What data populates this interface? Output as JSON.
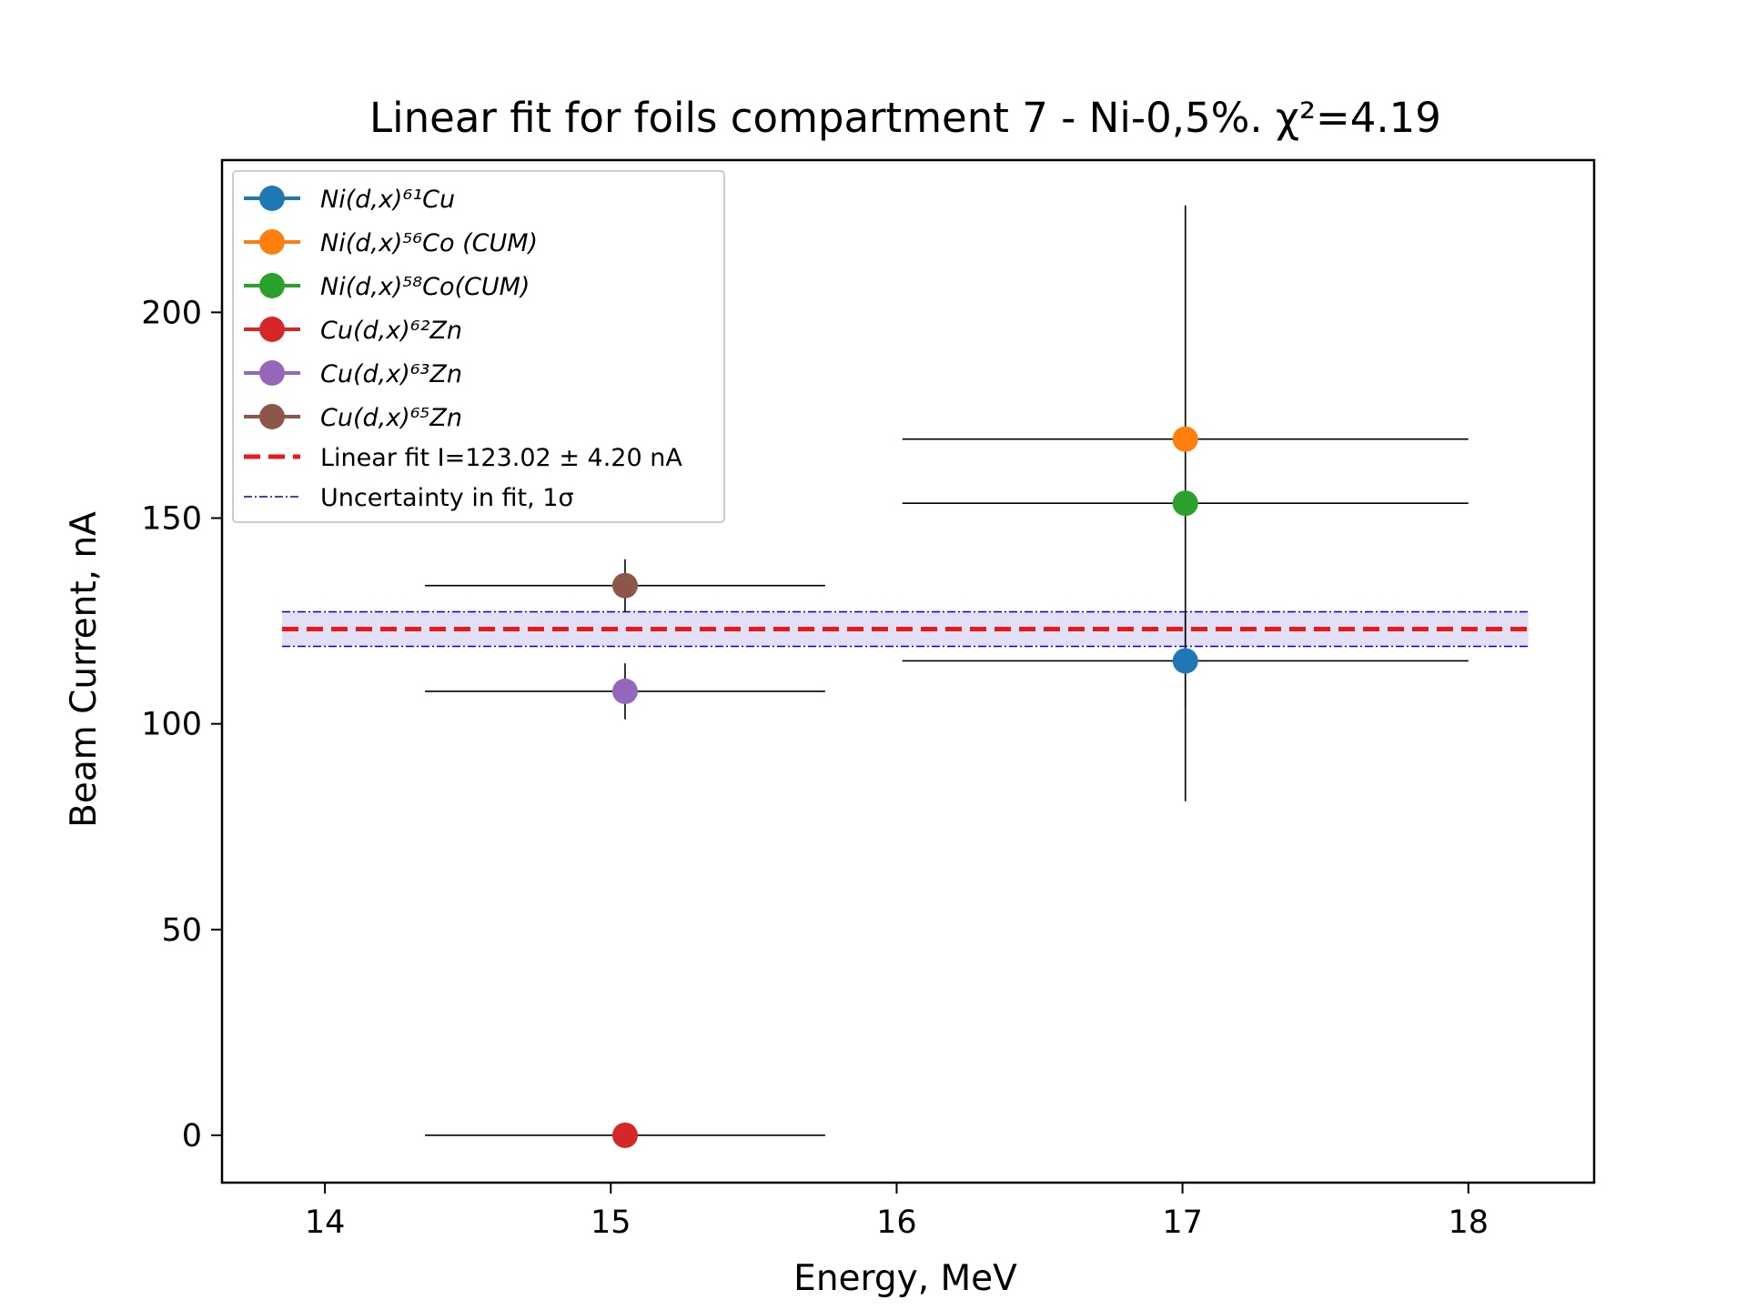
{
  "chart_data": {
    "type": "scatter",
    "title": "Linear fit for foils compartment 7 - Ni-0,5%. χ²=4.19",
    "xlabel": "Energy, MeV",
    "ylabel": "Beam Current, nA",
    "xlim": [
      13.64,
      18.44
    ],
    "ylim": [
      -11.5,
      237
    ],
    "x_ticks": [
      14,
      15,
      16,
      17,
      18
    ],
    "y_ticks": [
      0,
      50,
      100,
      150,
      200
    ],
    "grid": false,
    "legend_position": "upper-left",
    "series": [
      {
        "name": "Ni(d,x)⁶¹Cu",
        "color": "#1f77b4",
        "points": [
          {
            "x": 17.01,
            "y": 115.3,
            "xerr": 0.99,
            "yerr": 11.5
          }
        ]
      },
      {
        "name": "Ni(d,x)⁵⁶Co (CUM)",
        "color": "#ff7f0e",
        "points": [
          {
            "x": 17.01,
            "y": 169.2,
            "xerr": 0.99,
            "yerr": 0
          }
        ]
      },
      {
        "name": "Ni(d,x)⁵⁸Co(CUM)",
        "color": "#2ca02c",
        "points": [
          {
            "x": 17.01,
            "y": 153.6,
            "xerr": 0.99,
            "yerr": 72.4
          }
        ]
      },
      {
        "name": "Cu(d,x)⁶²Zn",
        "color": "#d62728",
        "points": [
          {
            "x": 15.05,
            "y": 0,
            "xerr": 0.7,
            "yerr": 0
          }
        ]
      },
      {
        "name": "Cu(d,x)⁶³Zn",
        "color": "#9467bd",
        "points": [
          {
            "x": 15.05,
            "y": 107.9,
            "xerr": 0.7,
            "yerr": 6.8
          }
        ]
      },
      {
        "name": "Cu(d,x)⁶⁵Zn",
        "color": "#8c564b",
        "points": [
          {
            "x": 15.05,
            "y": 133.6,
            "xerr": 0.7,
            "yerr": 6.4
          }
        ]
      }
    ],
    "fit": {
      "name": "Linear fit I=123.02 ± 4.20 nA",
      "value": 123.02,
      "uncertainty": 4.2,
      "x_range": [
        13.85,
        18.21
      ],
      "color": "#e41a1c"
    },
    "uncertainty_band": {
      "name": "Uncertainty in fit, 1σ",
      "color": "#0000cc",
      "fill_color": "#e3e0f5"
    }
  }
}
